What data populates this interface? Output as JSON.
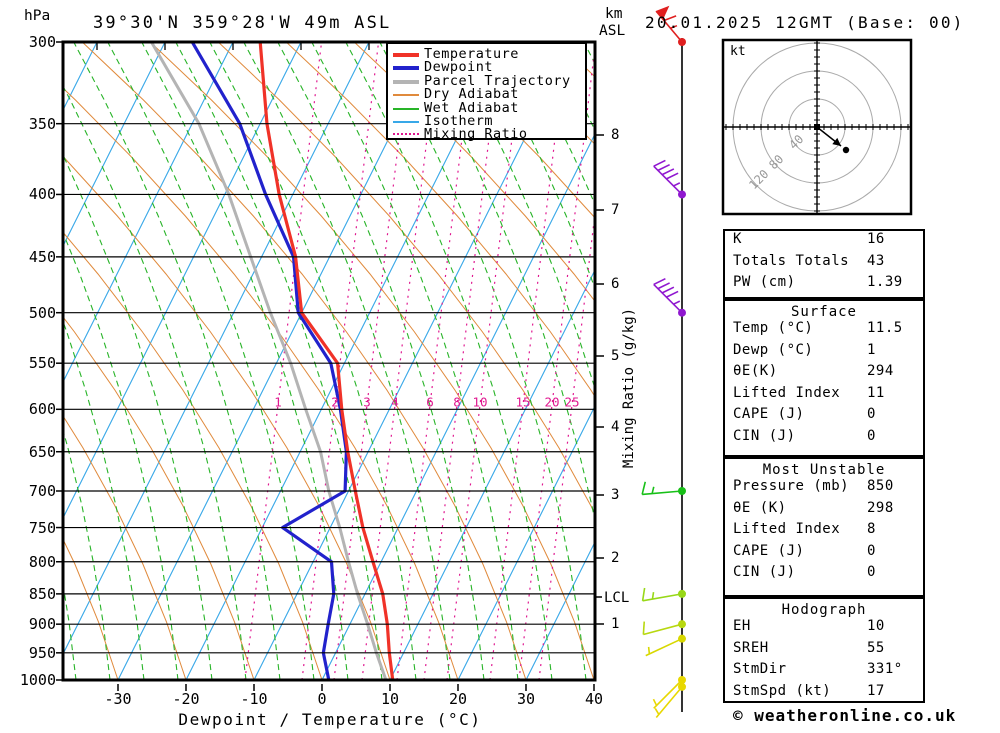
{
  "header": {
    "left_unit": "hPa",
    "title": "39°30'N 359°28'W 49m ASL",
    "right_unit_top": "km",
    "right_unit_bottom": "ASL",
    "datetime": "20.01.2025 12GMT (Base: 00)"
  },
  "legend": {
    "items": [
      {
        "label": "Temperature",
        "color": "#f03228",
        "style": "thick"
      },
      {
        "label": "Dewpoint",
        "color": "#2222cc",
        "style": "thick"
      },
      {
        "label": "Parcel Trajectory",
        "color": "#b4b4b4",
        "style": "thick"
      },
      {
        "label": "Dry Adiabat",
        "color": "#e08a3c",
        "style": "thin"
      },
      {
        "label": "Wet Adiabat",
        "color": "#28b428",
        "style": "thin"
      },
      {
        "label": "Isotherm",
        "color": "#38a8e8",
        "style": "thin"
      },
      {
        "label": "Mixing Ratio",
        "color": "#e01890",
        "style": "dotted"
      }
    ]
  },
  "axes": {
    "pressure_ticks": [
      300,
      350,
      400,
      450,
      500,
      550,
      600,
      650,
      700,
      750,
      800,
      850,
      900,
      950,
      1000
    ],
    "temp_ticks": [
      -30,
      -20,
      -10,
      0,
      10,
      20,
      30,
      40
    ],
    "x_label": "Dewpoint / Temperature (°C)",
    "km_ticks": [
      8,
      7,
      6,
      5,
      4,
      3,
      2,
      1
    ],
    "lcl_label": "LCL",
    "mixing_axis_label": "Mixing Ratio (g/kg)",
    "mixing_ticks": [
      1,
      2,
      3,
      4,
      6,
      8,
      10,
      15,
      20,
      25
    ]
  },
  "hodograph": {
    "unit": "kt",
    "ring_labels": [
      120,
      80,
      40
    ]
  },
  "table": {
    "sections": [
      {
        "header": "",
        "rows": [
          [
            "K",
            "16"
          ],
          [
            "Totals Totals",
            "43"
          ],
          [
            "PW (cm)",
            "1.39"
          ]
        ]
      },
      {
        "header": "Surface",
        "rows": [
          [
            "Temp (°C)",
            "11.5"
          ],
          [
            "Dewp (°C)",
            "1"
          ],
          [
            "θE(K)",
            "294"
          ],
          [
            "Lifted Index",
            "11"
          ],
          [
            "CAPE (J)",
            "0"
          ],
          [
            "CIN (J)",
            "0"
          ]
        ]
      },
      {
        "header": "Most Unstable",
        "rows": [
          [
            "Pressure (mb)",
            "850"
          ],
          [
            "θE (K)",
            "298"
          ],
          [
            "Lifted Index",
            "8"
          ],
          [
            "CAPE (J)",
            "0"
          ],
          [
            "CIN (J)",
            "0"
          ]
        ]
      },
      {
        "header": "Hodograph",
        "rows": [
          [
            "EH",
            "10"
          ],
          [
            "SREH",
            "55"
          ],
          [
            "StmDir",
            "331°"
          ],
          [
            "StmSpd (kt)",
            "17"
          ]
        ]
      }
    ]
  },
  "footer": {
    "copyright": "© weatheronline.co.uk"
  },
  "chart_data": {
    "type": "skew-t-log-p-sounding",
    "title": "39°30'N 359°28'W 49m ASL",
    "valid": "20.01.2025 12GMT (Base: 00)",
    "pressure_axis_hpa": [
      300,
      1000
    ],
    "temp_axis_c": [
      -40,
      40
    ],
    "pressure_hpa": [
      300,
      350,
      400,
      450,
      500,
      550,
      600,
      650,
      700,
      750,
      800,
      850,
      900,
      950,
      1000
    ],
    "temperature_c": [
      -56,
      -49,
      -42,
      -35,
      -30,
      -21,
      -17,
      -13,
      -9,
      -5.2,
      -1.2,
      2.6,
      5.5,
      7.9,
      10.4
    ],
    "dewpoint_c": [
      -66,
      -53,
      -44,
      -35.3,
      -30.5,
      -22,
      -17.2,
      -13.2,
      -10.5,
      -17,
      -7.3,
      -4.6,
      -3.2,
      -1.8,
      1
    ],
    "parcel_c": [
      -72,
      -59,
      -49.4,
      -41.6,
      -34.6,
      -27.9,
      -22.3,
      -17,
      -12.9,
      -8.6,
      -4.8,
      -1.1,
      2.6,
      6,
      9.4
    ],
    "lcl_hpa": 850,
    "wind_levels": [
      {
        "pressure_hpa": 300,
        "dir_deg": 320,
        "speed_kt": 65,
        "color": "#e02020"
      },
      {
        "pressure_hpa": 400,
        "dir_deg": 315,
        "speed_kt": 45,
        "color": "#9018d0"
      },
      {
        "pressure_hpa": 500,
        "dir_deg": 315,
        "speed_kt": 45,
        "color": "#9018d0"
      },
      {
        "pressure_hpa": 700,
        "dir_deg": 265,
        "speed_kt": 15,
        "color": "#18c018"
      },
      {
        "pressure_hpa": 850,
        "dir_deg": 260,
        "speed_kt": 15,
        "color": "#98d818"
      },
      {
        "pressure_hpa": 900,
        "dir_deg": 255,
        "speed_kt": 10,
        "color": "#b8d810"
      },
      {
        "pressure_hpa": 925,
        "dir_deg": 245,
        "speed_kt": 5,
        "color": "#d8d800"
      },
      {
        "pressure_hpa": 1000,
        "dir_deg": 225,
        "speed_kt": 5,
        "color": "#e8d800"
      },
      {
        "pressure_hpa": 1013,
        "dir_deg": 220,
        "speed_kt": 5,
        "color": "#e8d800"
      }
    ],
    "storm_motion": {
      "dir_deg": 331,
      "speed_kt": 17
    },
    "indices": {
      "K": 16,
      "totals_totals": 43,
      "pw_cm": 1.39,
      "surface": {
        "temp_c": 11.5,
        "dewp_c": 1,
        "theta_e_k": 294,
        "lifted_index": 11,
        "cape_j": 0,
        "cin_j": 0
      },
      "most_unstable": {
        "pressure_mb": 850,
        "theta_e_k": 298,
        "lifted_index": 8,
        "cape_j": 0,
        "cin_j": 0
      },
      "hodograph": {
        "eh": 10,
        "sreh": 55,
        "stm_dir_deg": 331,
        "stm_spd_kt": 17
      }
    }
  }
}
